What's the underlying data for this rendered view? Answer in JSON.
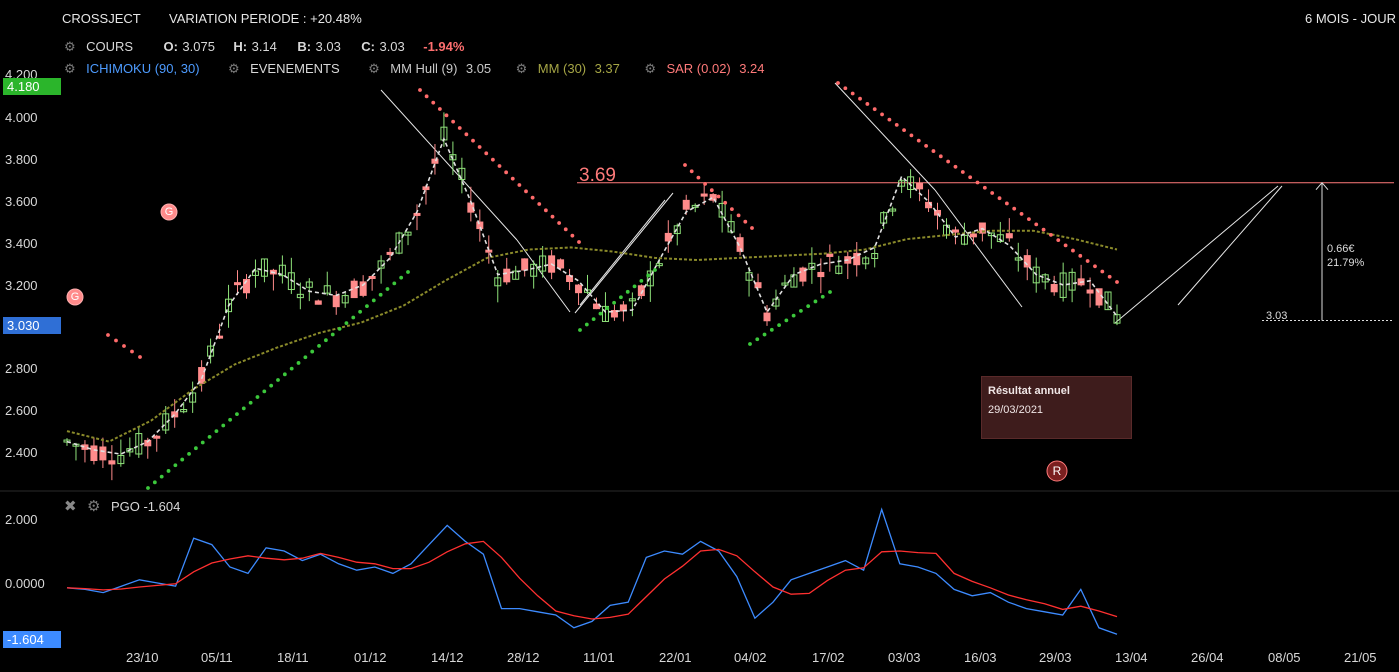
{
  "header": {
    "ticker": "CROSSJECT",
    "variation": "VARIATION PERIODE : +20.48%",
    "period": "6 MOIS - JOUR"
  },
  "quote": {
    "label": "COURS",
    "open_label": "O:",
    "open": "3.075",
    "high_label": "H:",
    "high": "3.14",
    "low_label": "B:",
    "low": "3.03",
    "close_label": "C:",
    "close": "3.03",
    "change": "-1.94%"
  },
  "indicators": {
    "ichimoku": "ICHIMOKU (90, 30)",
    "events": "EVENEMENTS",
    "hull_label": "MM Hull (9)",
    "hull_value": "3.05",
    "mm_label": "MM (30)",
    "mm_value": "3.37",
    "sar_label": "SAR (0.02)",
    "sar_value": "3.24"
  },
  "price_tags": {
    "high_tag": "4.180",
    "last_tag": "3.030",
    "resistance": "3.69",
    "last_level": "3.03",
    "fib_amount": "0.66€",
    "fib_percent": "21.79%"
  },
  "event": {
    "title": "Résultat annuel",
    "date": "29/03/2021",
    "marker_r": "R",
    "marker_g": "G"
  },
  "oscillator": {
    "label": "PGO -1.604",
    "last_tag": "-1.604",
    "yticks": [
      "2.000",
      "0.0000"
    ]
  },
  "colors": {
    "bull": "#8fe27a",
    "bear": "#ff8b8b",
    "sar": "#ff6b6b",
    "sar_bull": "#3cc83c",
    "hull": "#e0e0e0",
    "mm": "#8a8a2a",
    "pgo": "#3d8bff",
    "pgo_signal": "#ff3030",
    "resistance": "#ff7a7a",
    "ichimoku_text": "#4d9bff",
    "hull_text": "#c8c8c8",
    "mm_text": "#a5a545",
    "sar_text": "#ff7a7a"
  },
  "chart_data": {
    "type": "line",
    "title": "",
    "price_axis": {
      "ticks": [
        "4.200",
        "4.000",
        "3.800",
        "3.600",
        "3.400",
        "3.200",
        "2.800",
        "2.600",
        "2.400"
      ],
      "ylim": [
        2.2,
        4.2
      ]
    },
    "x_ticks": [
      "23/10",
      "05/11",
      "18/11",
      "01/12",
      "14/12",
      "28/12",
      "11/01",
      "22/01",
      "04/02",
      "17/02",
      "03/03",
      "16/03",
      "29/03",
      "13/04",
      "26/04",
      "08/05",
      "21/05"
    ],
    "grid": false,
    "series": [
      {
        "name": "MM Hull (9)",
        "values": [
          2.45,
          2.41,
          2.39,
          2.45,
          2.58,
          2.75,
          3.1,
          3.28,
          3.25,
          3.17,
          3.15,
          3.2,
          3.33,
          3.55,
          3.9,
          3.6,
          3.25,
          3.27,
          3.3,
          3.22,
          3.07,
          3.08,
          3.32,
          3.55,
          3.62,
          3.38,
          3.07,
          3.25,
          3.3,
          3.32,
          3.38,
          3.72,
          3.6,
          3.43,
          3.47,
          3.39,
          3.25,
          3.2,
          3.22,
          3.05
        ]
      },
      {
        "name": "MM (30)",
        "values": [
          2.5,
          2.45,
          2.55,
          2.7,
          2.82,
          2.9,
          2.97,
          3.02,
          3.1,
          3.22,
          3.33,
          3.37,
          3.38,
          3.36,
          3.33,
          3.32,
          3.33,
          3.34,
          3.35,
          3.37,
          3.42,
          3.44,
          3.46,
          3.46,
          3.42,
          3.37
        ]
      },
      {
        "name": "SAR (0.02)",
        "values": [
          2.93,
          2.3,
          2.52,
          2.75,
          2.95,
          3.15,
          4.12,
          3.62,
          3.05,
          3.28,
          3.75,
          3.2,
          2.95,
          3.15,
          4.15,
          3.5,
          3.24
        ]
      }
    ],
    "resistance_level": 3.69,
    "last_price": 3.03,
    "oscillator": {
      "name": "PGO",
      "last": -1.604,
      "ylim": [
        -1.7,
        2.3
      ],
      "values": [
        -0.15,
        -0.2,
        -0.3,
        -0.1,
        0.1,
        0.0,
        -0.1,
        1.4,
        1.2,
        0.5,
        0.3,
        1.1,
        1.0,
        0.7,
        0.9,
        0.6,
        0.4,
        0.5,
        0.3,
        0.6,
        1.2,
        1.8,
        1.3,
        0.9,
        -0.8,
        -0.8,
        -0.9,
        -1.0,
        -1.4,
        -1.2,
        -0.7,
        -0.6,
        0.8,
        1.0,
        0.9,
        1.3,
        1.0,
        0.2,
        -1.1,
        -0.6,
        0.1,
        0.3,
        0.5,
        0.7,
        0.4,
        2.3,
        0.6,
        0.5,
        0.3,
        -0.2,
        -0.4,
        -0.3,
        -0.6,
        -0.8,
        -0.9,
        -1.0,
        -0.2,
        -1.4,
        -1.6
      ]
    }
  }
}
